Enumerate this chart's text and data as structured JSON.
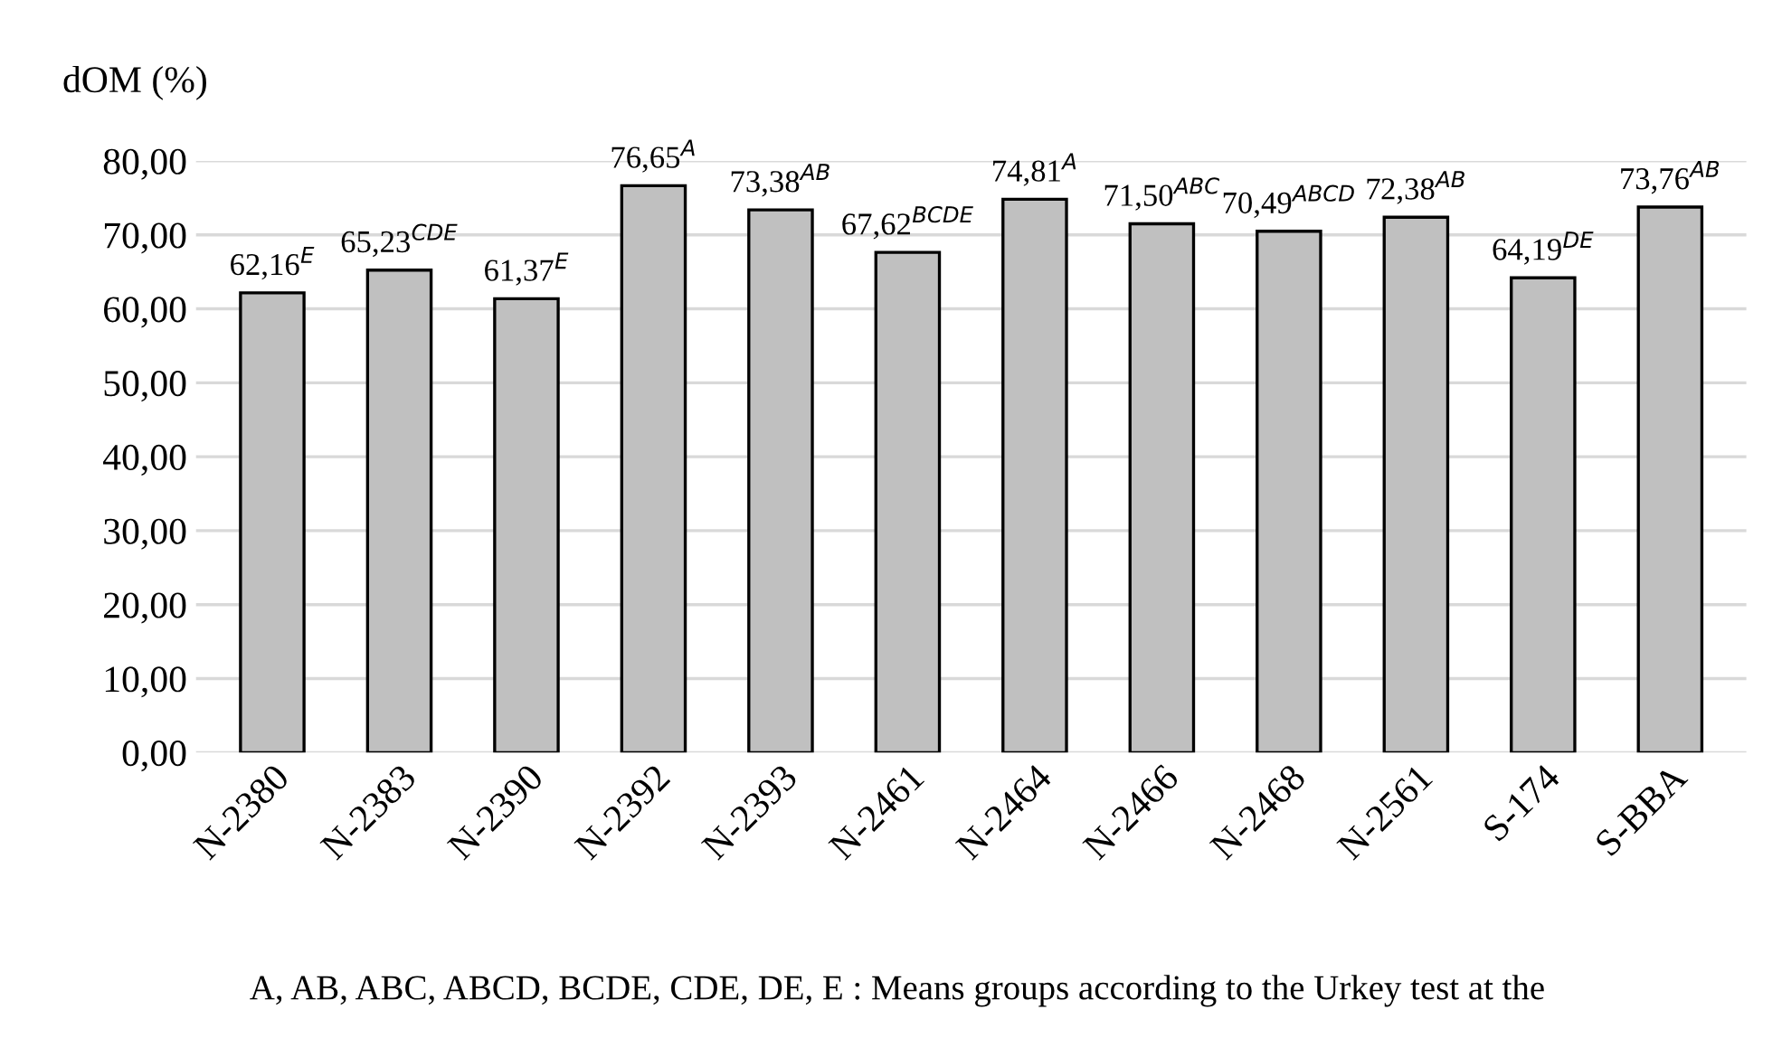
{
  "chart_data": {
    "type": "bar",
    "ylabel": "dOM (%)",
    "categories": [
      "N-2380",
      "N-2383",
      "N-2390",
      "N-2392",
      "N-2393",
      "N-2461",
      "N-2464",
      "N-2466",
      "N-2468",
      "N-2561",
      "S-174",
      "S-BBA"
    ],
    "values": [
      62.16,
      65.23,
      61.37,
      76.65,
      73.38,
      67.62,
      74.81,
      71.5,
      70.49,
      72.38,
      64.19,
      73.76
    ],
    "value_labels": [
      "62,16$^{E}$",
      "65,23$^{CDE}$",
      "61,37$^{E}$",
      "76,65$^{A}$",
      "73,38$^{AB}$",
      "67,62$^{BCDE}$",
      "74,81$^{A}$",
      "71,50$^{ABC}$",
      "70,49$^{ABCD}$",
      "72,38$^{AB}$",
      "64,19$^{DE}$",
      "73,76$^{AB}$"
    ],
    "color": "#c0c0c0",
    "ylim": [
      0,
      80
    ],
    "yticks": [
      {
        "value": 0,
        "label": "0,00"
      },
      {
        "value": 10,
        "label": "10,00"
      },
      {
        "value": 20,
        "label": "20,00"
      },
      {
        "value": 30,
        "label": "30,00"
      },
      {
        "value": 40,
        "label": "40,00"
      },
      {
        "value": 50,
        "label": "50,00"
      },
      {
        "value": 60,
        "label": "60,00"
      },
      {
        "value": 70,
        "label": "70,00"
      },
      {
        "value": 80,
        "label": "80,00"
      }
    ],
    "grid": "y",
    "annotations": [
      "A, AB, ABC, ABCD, BCDE, CDE, DE, E : Means groups according to the Urkey test at the"
    ]
  }
}
